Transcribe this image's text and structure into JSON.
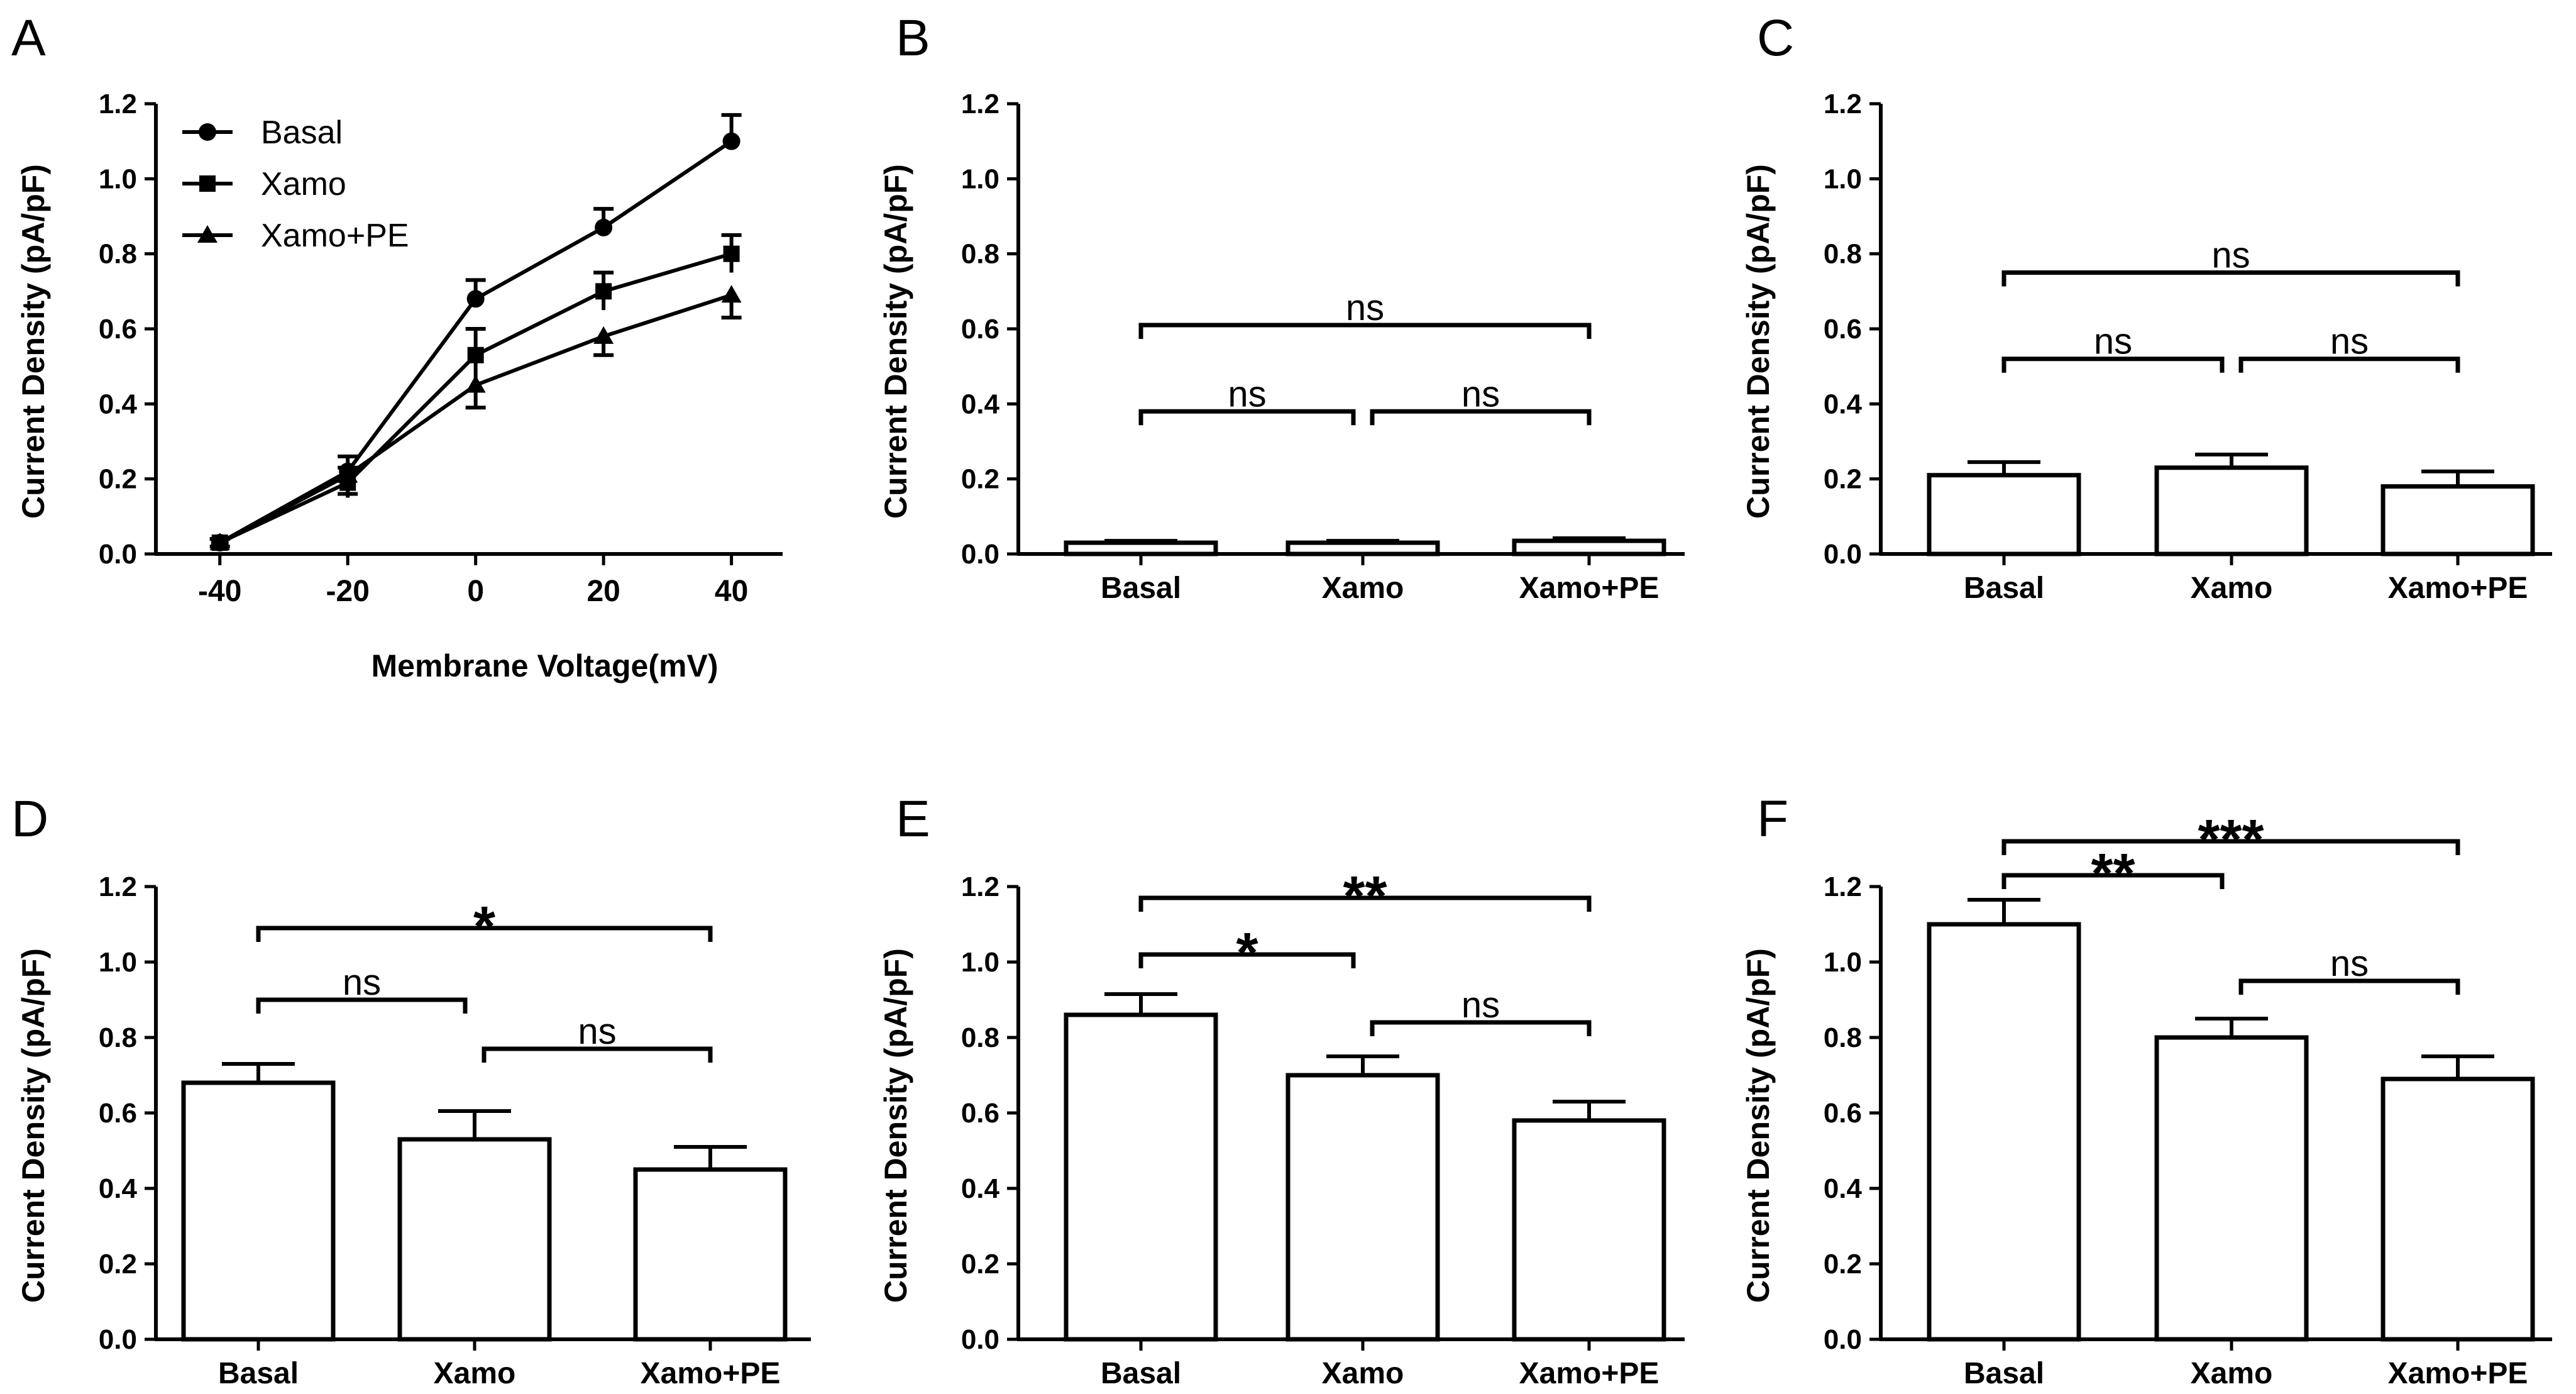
{
  "chart_data": [
    {
      "panel": "A",
      "type": "line",
      "xlabel": "Membrane Voltage(mV)",
      "ylabel": "Current Density (pA/pF)",
      "x": [
        -40,
        -20,
        0,
        20,
        40
      ],
      "x_tick_labels": [
        "-40",
        "-20",
        "0",
        "20",
        "40"
      ],
      "xlim": [
        -50,
        48
      ],
      "ylim": [
        0,
        1.2
      ],
      "y_tick_labels": [
        "0.0",
        "0.2",
        "0.4",
        "0.6",
        "0.8",
        "1.0",
        "1.2"
      ],
      "legend_position": "top-left",
      "series": [
        {
          "name": "Basal",
          "marker": "circle",
          "values": [
            0.03,
            0.22,
            0.68,
            0.87,
            1.1
          ],
          "errors": [
            0.01,
            0.04,
            0.05,
            0.05,
            0.07
          ]
        },
        {
          "name": "Xamo",
          "marker": "square",
          "values": [
            0.03,
            0.19,
            0.53,
            0.7,
            0.8
          ],
          "errors": [
            0.01,
            0.04,
            0.07,
            0.05,
            0.05
          ]
        },
        {
          "name": "Xamo+PE",
          "marker": "triangle",
          "values": [
            0.03,
            0.21,
            0.45,
            0.58,
            0.69
          ],
          "errors": [
            0.01,
            0.05,
            0.06,
            0.05,
            0.06
          ]
        }
      ]
    },
    {
      "panel": "B",
      "type": "bar",
      "ylabel": "Current Density (pA/pF)",
      "categories": [
        "Basal",
        "Xamo",
        "Xamo+PE"
      ],
      "values": [
        0.03,
        0.03,
        0.035
      ],
      "errors": [
        0.005,
        0.005,
        0.007
      ],
      "ylim": [
        0,
        1.2
      ],
      "y_tick_labels": [
        "0.0",
        "0.2",
        "0.4",
        "0.6",
        "0.8",
        "1.0",
        "1.2"
      ],
      "comparisons": [
        {
          "from": 0,
          "to": 1,
          "label": "ns",
          "level": 0.38
        },
        {
          "from": 1,
          "to": 2,
          "label": "ns",
          "level": 0.38
        },
        {
          "from": 0,
          "to": 2,
          "label": "ns",
          "level": 0.61
        }
      ]
    },
    {
      "panel": "C",
      "type": "bar",
      "ylabel": "Current Density (pA/pF)",
      "categories": [
        "Basal",
        "Xamo",
        "Xamo+PE"
      ],
      "values": [
        0.21,
        0.23,
        0.18
      ],
      "errors": [
        0.035,
        0.035,
        0.04
      ],
      "ylim": [
        0,
        1.2
      ],
      "y_tick_labels": [
        "0.0",
        "0.2",
        "0.4",
        "0.6",
        "0.8",
        "1.0",
        "1.2"
      ],
      "comparisons": [
        {
          "from": 0,
          "to": 1,
          "label": "ns",
          "level": 0.52
        },
        {
          "from": 1,
          "to": 2,
          "label": "ns",
          "level": 0.52
        },
        {
          "from": 0,
          "to": 2,
          "label": "ns",
          "level": 0.75
        }
      ]
    },
    {
      "panel": "D",
      "type": "bar",
      "ylabel": "Current Density (pA/pF)",
      "categories": [
        "Basal",
        "Xamo",
        "Xamo+PE"
      ],
      "values": [
        0.68,
        0.53,
        0.45
      ],
      "errors": [
        0.05,
        0.075,
        0.06
      ],
      "ylim": [
        0,
        1.2
      ],
      "y_tick_labels": [
        "0.0",
        "0.2",
        "0.4",
        "0.6",
        "0.8",
        "1.0",
        "1.2"
      ],
      "comparisons": [
        {
          "from": 0,
          "to": 1,
          "label": "ns",
          "level": 0.9
        },
        {
          "from": 1,
          "to": 2,
          "label": "ns",
          "level": 0.77
        },
        {
          "from": 0,
          "to": 2,
          "label": "*",
          "level": 1.09
        }
      ]
    },
    {
      "panel": "E",
      "type": "bar",
      "ylabel": "Current Density (pA/pF)",
      "categories": [
        "Basal",
        "Xamo",
        "Xamo+PE"
      ],
      "values": [
        0.86,
        0.7,
        0.58
      ],
      "errors": [
        0.055,
        0.05,
        0.05
      ],
      "ylim": [
        0,
        1.2
      ],
      "y_tick_labels": [
        "0.0",
        "0.2",
        "0.4",
        "0.6",
        "0.8",
        "1.0",
        "1.2"
      ],
      "comparisons": [
        {
          "from": 0,
          "to": 1,
          "label": "*",
          "level": 1.02
        },
        {
          "from": 1,
          "to": 2,
          "label": "ns",
          "level": 0.84
        },
        {
          "from": 0,
          "to": 2,
          "label": "**",
          "level": 1.17
        }
      ]
    },
    {
      "panel": "F",
      "type": "bar",
      "ylabel": "Current Density (pA/pF)",
      "categories": [
        "Basal",
        "Xamo",
        "Xamo+PE"
      ],
      "values": [
        1.1,
        0.8,
        0.69
      ],
      "errors": [
        0.065,
        0.05,
        0.06
      ],
      "ylim": [
        0,
        1.2
      ],
      "y_tick_labels": [
        "0.0",
        "0.2",
        "0.4",
        "0.6",
        "0.8",
        "1.0",
        "1.2"
      ],
      "comparisons": [
        {
          "from": 0,
          "to": 1,
          "label": "**",
          "level": 1.23
        },
        {
          "from": 1,
          "to": 2,
          "label": "ns",
          "level": 0.95
        },
        {
          "from": 0,
          "to": 2,
          "label": "***",
          "level": 1.32
        }
      ]
    }
  ]
}
